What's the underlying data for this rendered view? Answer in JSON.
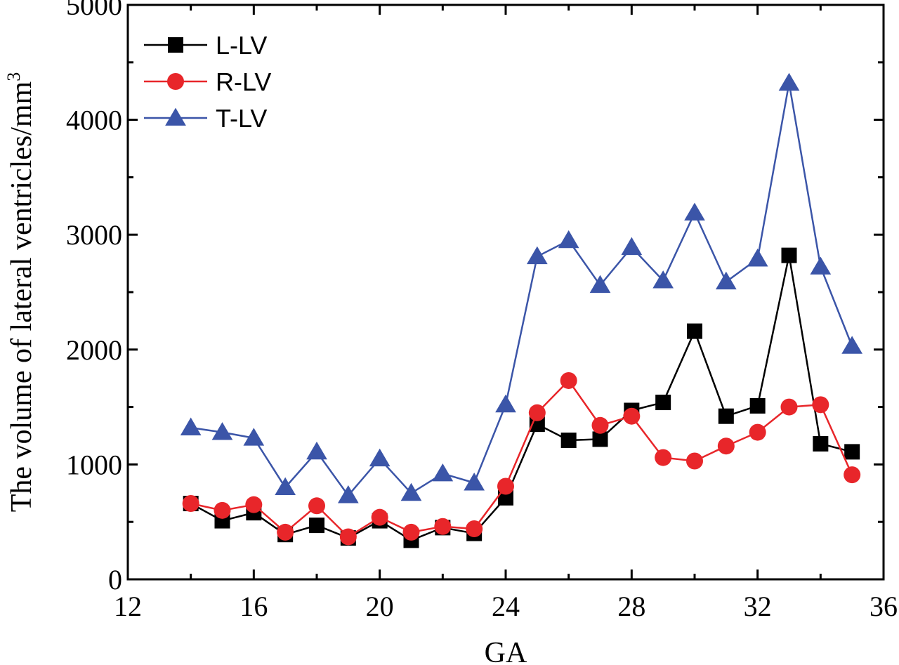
{
  "chart_data": {
    "type": "line",
    "xlabel": "GA",
    "ylabel_main": "The volume of lateral ventricles/mm",
    "ylabel_sup": "3",
    "xlim": [
      12,
      36
    ],
    "ylim": [
      0,
      5000
    ],
    "x_ticks": [
      12,
      16,
      20,
      24,
      28,
      32,
      36
    ],
    "x_tick_labels": [
      "12",
      "16",
      "20",
      "24",
      "28",
      "32",
      "36"
    ],
    "y_ticks": [
      0,
      1000,
      2000,
      3000,
      4000,
      5000
    ],
    "y_tick_labels": [
      "0",
      "1000",
      "2000",
      "3000",
      "4000",
      "5000"
    ],
    "grid": false,
    "legend_position": "top-left",
    "x": [
      14,
      15,
      16,
      17,
      18,
      19,
      20,
      21,
      22,
      23,
      24,
      25,
      26,
      27,
      28,
      29,
      30,
      31,
      32,
      33,
      34,
      35
    ],
    "series": [
      {
        "name": "L-LV",
        "color": "#000000",
        "marker": "square",
        "values": [
          660,
          510,
          580,
          390,
          470,
          360,
          510,
          340,
          450,
          400,
          710,
          1350,
          1210,
          1220,
          1470,
          1540,
          2160,
          1420,
          1510,
          2820,
          1180,
          1110
        ]
      },
      {
        "name": "R-LV",
        "color": "#e8262a",
        "marker": "circle",
        "values": [
          660,
          600,
          650,
          410,
          640,
          370,
          540,
          410,
          460,
          440,
          810,
          1450,
          1730,
          1340,
          1420,
          1060,
          1030,
          1160,
          1280,
          1500,
          1520,
          910
        ]
      },
      {
        "name": "T-LV",
        "color": "#3b55a8",
        "marker": "triangle",
        "values": [
          1320,
          1280,
          1230,
          800,
          1110,
          730,
          1050,
          750,
          920,
          840,
          1520,
          2810,
          2950,
          2560,
          2890,
          2600,
          3190,
          2590,
          2790,
          4320,
          2720,
          2030
        ]
      }
    ]
  }
}
